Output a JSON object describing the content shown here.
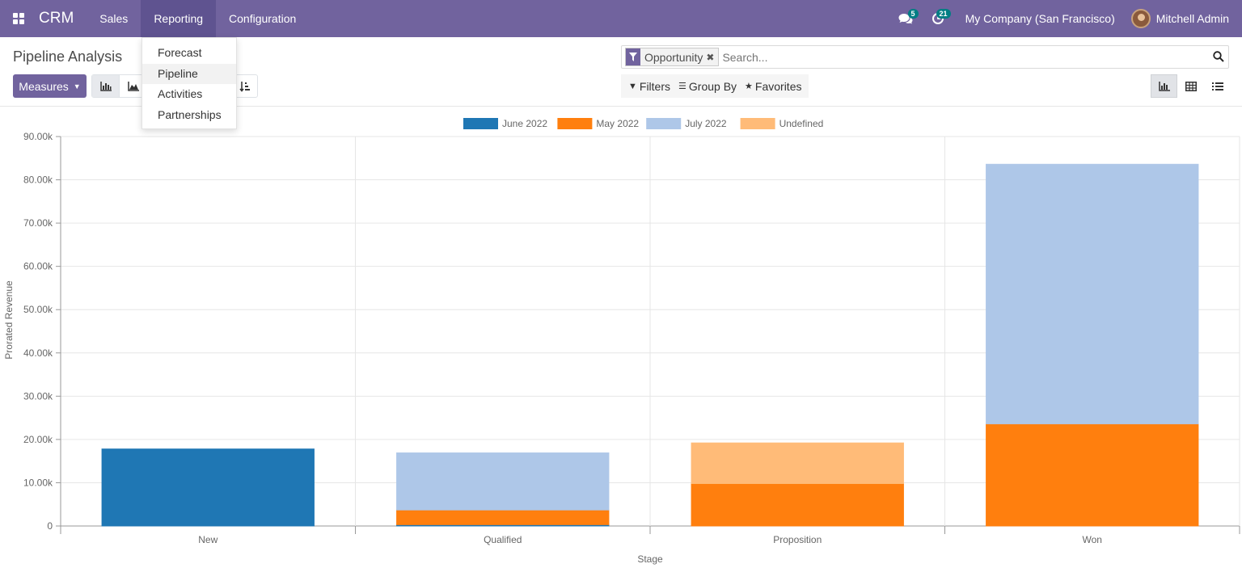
{
  "navbar": {
    "brand": "CRM",
    "menu": [
      {
        "label": "Sales"
      },
      {
        "label": "Reporting"
      },
      {
        "label": "Configuration"
      }
    ],
    "messages_count": "5",
    "activities_count": "21",
    "company": "My Company (San Francisco)",
    "user": "Mitchell Admin"
  },
  "reporting_menu": {
    "items": [
      "Forecast",
      "Pipeline",
      "Activities",
      "Partnerships"
    ],
    "hovered": "Pipeline"
  },
  "page": {
    "title": "Pipeline Analysis",
    "measures_label": "Measures"
  },
  "search": {
    "facet": "Opportunity",
    "placeholder": "Search..."
  },
  "filter_bar": {
    "filters": "Filters",
    "group_by": "Group By",
    "favorites": "Favorites"
  },
  "colors": {
    "brand": "#71639e",
    "june": "#1f77b4",
    "may": "#ff7f0e",
    "july": "#aec7e8",
    "undefined": "#ffbb78"
  },
  "chart_data": {
    "type": "bar",
    "stacked": true,
    "categories": [
      "New",
      "Qualified",
      "Proposition",
      "Won"
    ],
    "series": [
      {
        "name": "June 2022",
        "color": "#1f77b4",
        "values": [
          17800,
          300,
          0,
          0
        ]
      },
      {
        "name": "May 2022",
        "color": "#ff7f0e",
        "values": [
          0,
          3400,
          9800,
          23600
        ]
      },
      {
        "name": "July 2022",
        "color": "#aec7e8",
        "values": [
          0,
          13200,
          0,
          60000
        ]
      },
      {
        "name": "Undefined",
        "color": "#ffbb78",
        "values": [
          0,
          0,
          9400,
          0
        ]
      }
    ],
    "xlabel": "Stage",
    "ylabel": "Prorated Revenue",
    "ylim": [
      0,
      90000
    ],
    "yticks": [
      "0",
      "10.00k",
      "20.00k",
      "30.00k",
      "40.00k",
      "50.00k",
      "60.00k",
      "70.00k",
      "80.00k",
      "90.00k"
    ],
    "grid": true,
    "legend_position": "top"
  }
}
